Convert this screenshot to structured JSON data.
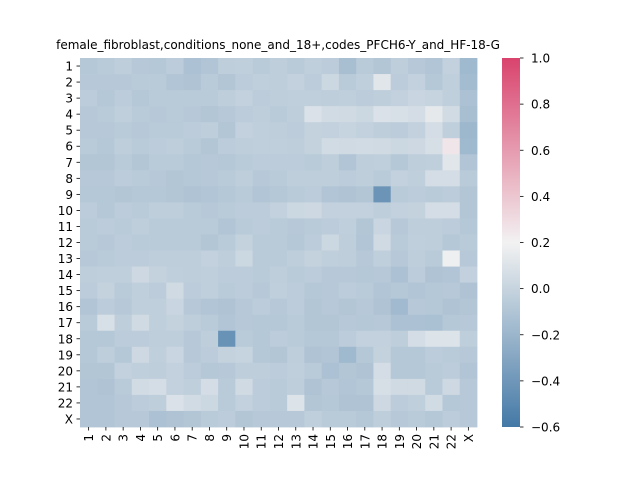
{
  "chart_data": {
    "type": "heatmap",
    "title": "female_fibroblast,conditions_none_and_18+,codes_PFCH6-Y_and_HF-18-G",
    "xlabel": "",
    "ylabel": "",
    "x_labels": [
      "1",
      "2",
      "3",
      "4",
      "5",
      "6",
      "7",
      "8",
      "9",
      "10",
      "11",
      "12",
      "13",
      "14",
      "15",
      "16",
      "17",
      "18",
      "19",
      "20",
      "21",
      "22",
      "X"
    ],
    "y_labels": [
      "1",
      "2",
      "3",
      "4",
      "5",
      "6",
      "7",
      "8",
      "9",
      "10",
      "11",
      "12",
      "13",
      "14",
      "15",
      "16",
      "17",
      "18",
      "19",
      "20",
      "21",
      "22",
      "X"
    ],
    "colorbar": {
      "vmin": -0.6,
      "vmax": 1.0,
      "ticks": [
        "1.0",
        "0.8",
        "0.6",
        "0.4",
        "0.2",
        "0.0",
        "−0.2",
        "−0.4",
        "−0.6"
      ],
      "tick_values": [
        1.0,
        0.8,
        0.6,
        0.4,
        0.2,
        0.0,
        -0.2,
        -0.4,
        -0.6
      ],
      "colors": {
        "low": "#4479a6",
        "mid": "#f2f2f2",
        "high": "#d9436d"
      }
    },
    "matrix": [
      [
        -0.08,
        -0.06,
        -0.04,
        -0.07,
        -0.08,
        -0.05,
        -0.12,
        -0.1,
        -0.04,
        -0.03,
        -0.06,
        -0.04,
        -0.06,
        -0.03,
        -0.05,
        -0.14,
        -0.06,
        -0.09,
        -0.04,
        -0.07,
        -0.1,
        -0.02,
        -0.18
      ],
      [
        -0.07,
        -0.07,
        -0.07,
        -0.06,
        -0.06,
        -0.1,
        -0.11,
        -0.06,
        -0.09,
        -0.05,
        -0.03,
        -0.04,
        -0.02,
        -0.05,
        0.02,
        -0.06,
        -0.03,
        0.12,
        -0.05,
        -0.02,
        -0.08,
        -0.03,
        -0.16
      ],
      [
        -0.05,
        -0.08,
        -0.05,
        -0.08,
        -0.06,
        -0.06,
        -0.06,
        -0.06,
        -0.04,
        -0.02,
        -0.05,
        -0.04,
        -0.03,
        -0.03,
        -0.04,
        -0.03,
        -0.05,
        -0.04,
        -0.02,
        0.01,
        0.0,
        -0.03,
        -0.12
      ],
      [
        -0.07,
        -0.06,
        -0.03,
        -0.06,
        -0.07,
        -0.06,
        -0.07,
        -0.09,
        -0.07,
        -0.05,
        -0.04,
        -0.06,
        -0.04,
        0.09,
        0.05,
        0.04,
        0.02,
        0.09,
        0.08,
        0.06,
        0.14,
        0.05,
        -0.14
      ],
      [
        -0.07,
        -0.07,
        -0.06,
        -0.07,
        -0.06,
        -0.06,
        -0.05,
        -0.04,
        -0.09,
        -0.02,
        -0.03,
        -0.04,
        -0.05,
        -0.01,
        -0.02,
        0.0,
        -0.02,
        -0.04,
        -0.05,
        -0.02,
        0.06,
        -0.03,
        -0.19
      ],
      [
        -0.06,
        -0.08,
        -0.04,
        -0.06,
        -0.05,
        -0.04,
        -0.06,
        -0.09,
        -0.05,
        -0.04,
        -0.03,
        -0.03,
        -0.04,
        -0.01,
        0.05,
        0.04,
        0.05,
        0.04,
        0.02,
        0.03,
        0.07,
        0.26,
        -0.18
      ],
      [
        -0.09,
        -0.09,
        -0.06,
        -0.09,
        -0.06,
        -0.06,
        -0.08,
        -0.07,
        -0.08,
        -0.06,
        -0.05,
        -0.05,
        -0.05,
        -0.06,
        -0.04,
        -0.1,
        -0.04,
        -0.03,
        -0.08,
        -0.04,
        -0.03,
        0.12,
        -0.1
      ],
      [
        -0.07,
        -0.07,
        -0.05,
        -0.06,
        -0.07,
        -0.09,
        -0.08,
        -0.07,
        -0.06,
        -0.04,
        -0.07,
        -0.06,
        -0.04,
        -0.04,
        -0.04,
        -0.05,
        -0.04,
        -0.06,
        -0.02,
        -0.03,
        0.06,
        0.06,
        -0.06
      ],
      [
        -0.08,
        -0.08,
        -0.09,
        -0.08,
        -0.08,
        -0.09,
        -0.11,
        -0.1,
        -0.08,
        -0.06,
        -0.1,
        -0.08,
        -0.06,
        -0.05,
        -0.1,
        -0.11,
        -0.09,
        -0.42,
        -0.06,
        -0.05,
        -0.06,
        -0.05,
        -0.09
      ],
      [
        -0.05,
        -0.08,
        -0.05,
        -0.06,
        -0.04,
        -0.04,
        -0.06,
        -0.07,
        -0.06,
        -0.05,
        -0.05,
        -0.02,
        0.02,
        0.03,
        -0.02,
        -0.02,
        -0.02,
        -0.04,
        -0.02,
        -0.01,
        0.06,
        0.06,
        -0.09
      ],
      [
        -0.06,
        -0.05,
        -0.06,
        -0.04,
        -0.06,
        -0.06,
        -0.06,
        -0.06,
        -0.1,
        -0.06,
        -0.05,
        -0.06,
        -0.07,
        -0.06,
        -0.05,
        -0.03,
        -0.09,
        0.01,
        -0.07,
        -0.04,
        -0.04,
        -0.05,
        -0.08
      ],
      [
        -0.06,
        -0.07,
        -0.05,
        -0.06,
        -0.06,
        -0.06,
        -0.06,
        -0.09,
        -0.06,
        -0.01,
        -0.06,
        -0.06,
        -0.08,
        -0.05,
        0.02,
        -0.04,
        -0.1,
        0.04,
        -0.06,
        -0.03,
        -0.04,
        -0.08,
        -0.06
      ],
      [
        -0.07,
        -0.06,
        -0.05,
        -0.05,
        -0.04,
        -0.04,
        -0.04,
        -0.02,
        -0.04,
        0.02,
        -0.06,
        -0.06,
        -0.04,
        -0.01,
        -0.03,
        -0.04,
        -0.07,
        -0.03,
        -0.07,
        -0.04,
        -0.06,
        0.18,
        -0.07
      ],
      [
        -0.04,
        -0.03,
        -0.03,
        0.03,
        -0.01,
        -0.03,
        -0.04,
        -0.03,
        -0.05,
        -0.05,
        -0.06,
        -0.04,
        -0.06,
        -0.05,
        -0.07,
        -0.07,
        -0.08,
        -0.07,
        -0.12,
        -0.05,
        -0.11,
        -0.1,
        -0.02
      ],
      [
        -0.05,
        -0.01,
        -0.06,
        -0.03,
        -0.05,
        0.04,
        -0.05,
        -0.03,
        -0.06,
        -0.05,
        -0.07,
        -0.03,
        -0.05,
        -0.08,
        -0.07,
        -0.05,
        -0.06,
        -0.1,
        -0.08,
        -0.1,
        -0.08,
        -0.07,
        -0.11
      ],
      [
        -0.1,
        -0.05,
        -0.07,
        -0.03,
        -0.03,
        0.01,
        -0.07,
        -0.1,
        -0.11,
        -0.07,
        -0.05,
        -0.07,
        -0.05,
        -0.09,
        -0.07,
        -0.09,
        -0.07,
        -0.11,
        -0.17,
        -0.07,
        -0.08,
        -0.11,
        -0.09
      ],
      [
        -0.06,
        0.08,
        -0.04,
        0.04,
        -0.03,
        -0.01,
        -0.04,
        -0.06,
        -0.1,
        -0.07,
        -0.08,
        -0.08,
        -0.06,
        -0.09,
        -0.09,
        -0.07,
        -0.08,
        -0.07,
        -0.12,
        -0.12,
        -0.13,
        -0.08,
        -0.07
      ],
      [
        -0.08,
        -0.08,
        -0.05,
        -0.05,
        -0.04,
        -0.04,
        -0.07,
        -0.04,
        -0.43,
        -0.06,
        -0.08,
        -0.05,
        -0.06,
        -0.08,
        -0.08,
        -0.05,
        -0.02,
        -0.02,
        -0.04,
        0.06,
        0.1,
        0.1,
        -0.04
      ],
      [
        -0.08,
        -0.04,
        -0.08,
        0.03,
        -0.03,
        0.01,
        -0.07,
        -0.05,
        -0.01,
        0.0,
        -0.08,
        -0.09,
        -0.04,
        -0.11,
        -0.1,
        -0.18,
        -0.08,
        -0.01,
        -0.08,
        -0.08,
        -0.05,
        -0.06,
        -0.07
      ],
      [
        -0.09,
        -0.09,
        -0.02,
        -0.03,
        -0.04,
        -0.02,
        -0.05,
        -0.08,
        -0.07,
        -0.04,
        -0.04,
        -0.05,
        -0.03,
        -0.06,
        -0.12,
        -0.09,
        -0.11,
        0.06,
        -0.08,
        -0.08,
        -0.06,
        -0.05,
        -0.1
      ],
      [
        -0.1,
        -0.11,
        -0.06,
        0.05,
        0.06,
        -0.02,
        -0.03,
        0.06,
        -0.06,
        0.04,
        -0.05,
        -0.06,
        -0.04,
        -0.11,
        -0.07,
        -0.1,
        -0.08,
        0.07,
        0.04,
        0.04,
        -0.06,
        0.03,
        -0.07
      ],
      [
        -0.1,
        -0.1,
        -0.07,
        -0.05,
        -0.04,
        0.09,
        0.05,
        0.02,
        -0.06,
        -0.02,
        -0.05,
        -0.06,
        0.1,
        -0.09,
        -0.08,
        -0.11,
        -0.11,
        0.03,
        -0.05,
        -0.03,
        0.05,
        -0.08,
        -0.07
      ],
      [
        -0.1,
        -0.1,
        -0.07,
        -0.07,
        -0.12,
        -0.11,
        -0.09,
        -0.06,
        -0.05,
        -0.09,
        -0.07,
        -0.07,
        -0.07,
        -0.03,
        -0.06,
        -0.06,
        -0.08,
        -0.04,
        -0.07,
        -0.06,
        -0.08,
        -0.05,
        -0.07
      ]
    ]
  }
}
